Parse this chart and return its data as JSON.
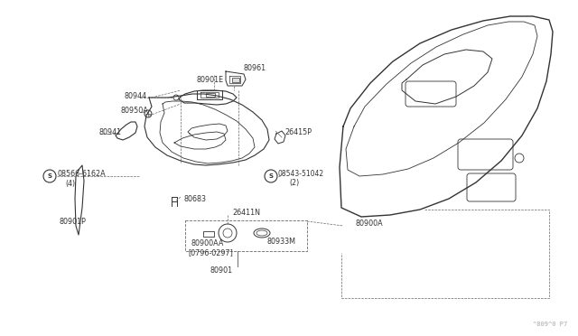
{
  "bg_color": "#ffffff",
  "line_color": "#333333",
  "label_color": "#333333",
  "watermark": "^809^0 P7",
  "fig_w": 6.4,
  "fig_h": 3.72,
  "dpi": 100,
  "xlim": [
    0,
    640
  ],
  "ylim": [
    0,
    372
  ]
}
